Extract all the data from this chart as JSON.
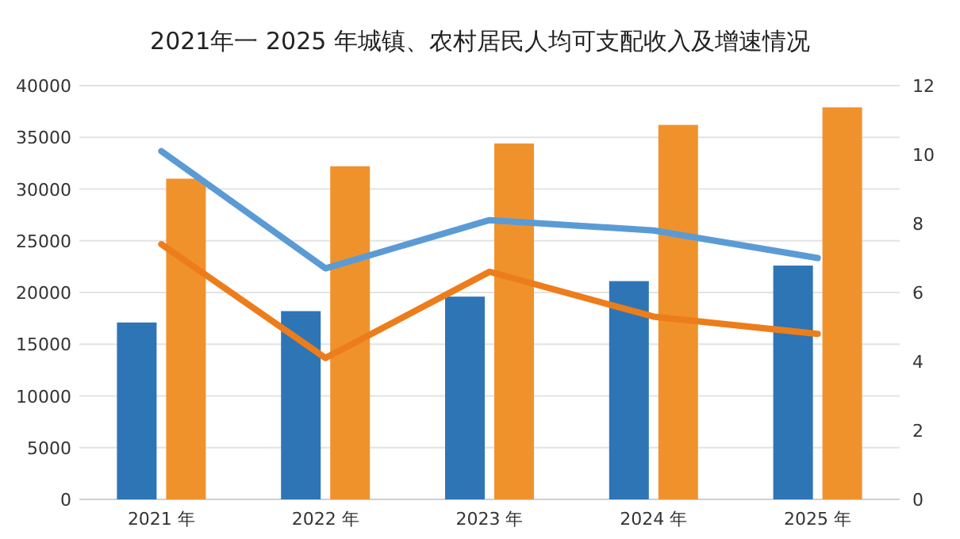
{
  "chart_data": {
    "type": "bar",
    "title": "2021年一 2025 年城镇、农村居民人均可支配收入及增速情况",
    "categories": [
      "2021 年",
      "2022 年",
      "2023 年",
      "2024 年",
      "2025 年"
    ],
    "series": [
      {
        "color": "#2e75b6",
        "values": [
          17100,
          18200,
          19600,
          21100,
          22600
        ]
      },
      {
        "color": "#f0922b",
        "values": [
          31000,
          32200,
          34400,
          36200,
          37900
        ]
      },
      {
        "type": "line",
        "axis": "y2",
        "color": "#5b9bd5",
        "values": [
          10.1,
          6.7,
          8.1,
          7.8,
          7.0
        ]
      },
      {
        "type": "line",
        "axis": "y2",
        "color": "#ed7d1a",
        "values": [
          7.4,
          4.1,
          6.6,
          5.3,
          4.8
        ]
      }
    ],
    "ylim": [
      0,
      40000
    ],
    "yticks": [
      0,
      5000,
      10000,
      15000,
      20000,
      25000,
      30000,
      35000,
      40000
    ],
    "y2lim": [
      0,
      12
    ],
    "y2ticks": [
      0,
      2,
      4,
      6,
      8,
      10,
      12
    ],
    "grid": "y"
  }
}
